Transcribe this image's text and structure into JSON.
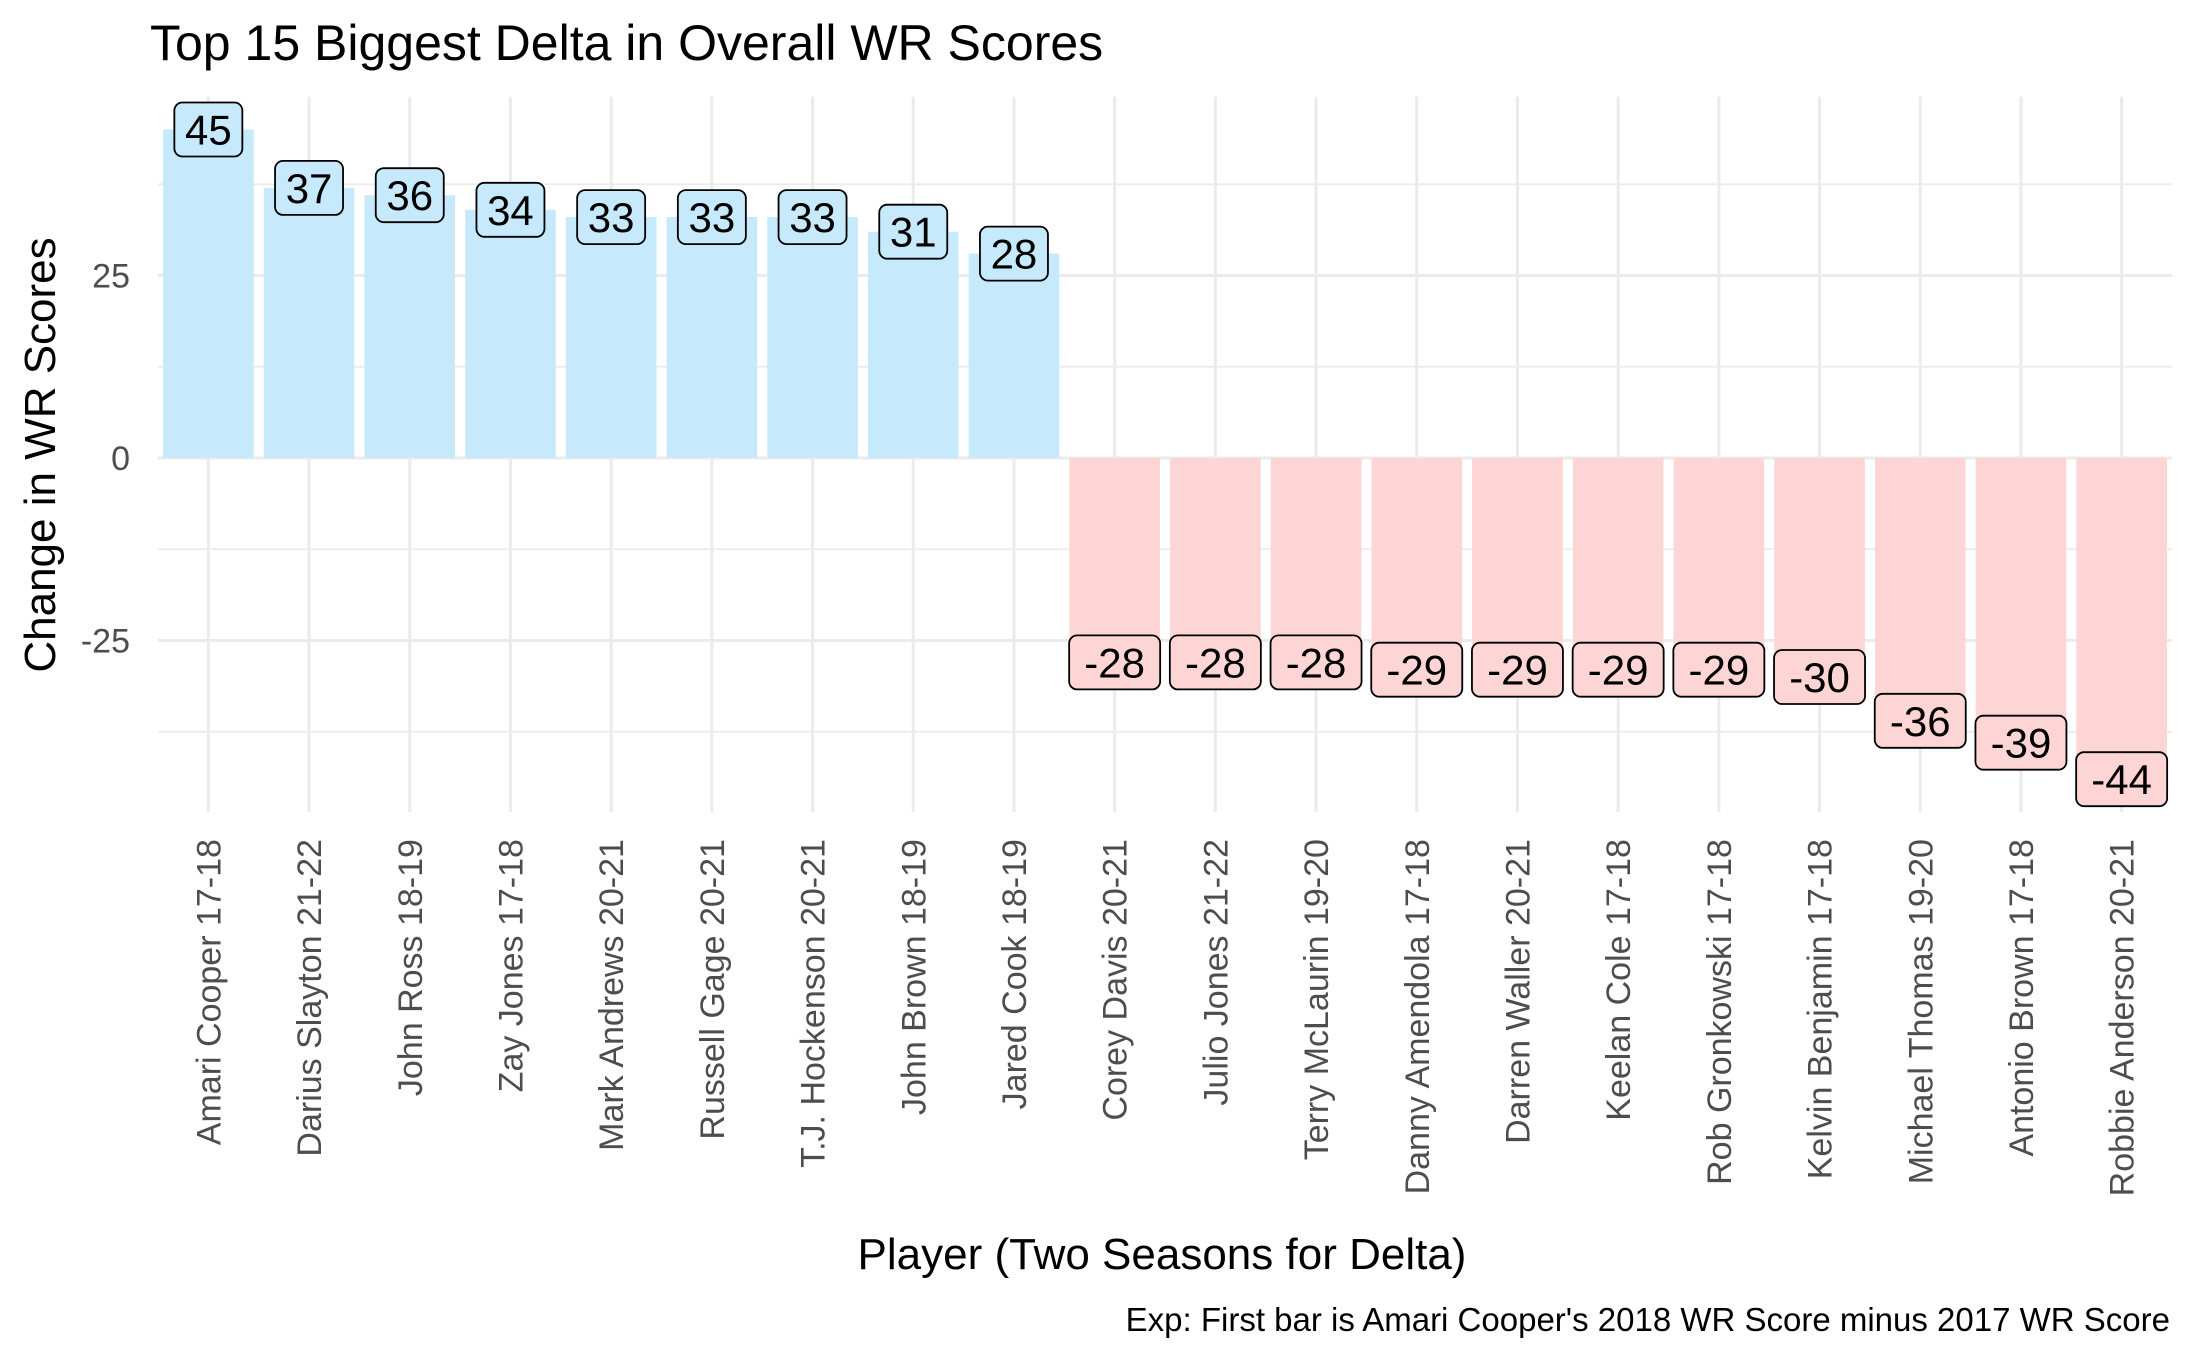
{
  "chart_data": {
    "type": "bar",
    "title": "Top 15 Biggest Delta in Overall WR Scores",
    "xlabel": "Player (Two Seasons for Delta)",
    "ylabel": "Change in WR Scores",
    "caption": "Exp: First bar is Amari Cooper's 2018 WR Score minus 2017 WR Score",
    "categories": [
      "Amari Cooper 17-18",
      "Darius Slayton 21-22",
      "John Ross 18-19",
      "Zay Jones 17-18",
      "Mark Andrews 20-21",
      "Russell Gage 20-21",
      "T.J. Hockenson 20-21",
      "John Brown 18-19",
      "Jared Cook 18-19",
      "Corey Davis 20-21",
      "Julio Jones 21-22",
      "Terry McLaurin 19-20",
      "Danny Amendola 17-18",
      "Darren Waller 20-21",
      "Keelan Cole 17-18",
      "Rob Gronkowski 17-18",
      "Kelvin Benjamin 17-18",
      "Michael Thomas 19-20",
      "Antonio Brown 17-18",
      "Robbie Anderson 20-21"
    ],
    "values": [
      45,
      37,
      36,
      34,
      33,
      33,
      33,
      31,
      28,
      -28,
      -28,
      -28,
      -29,
      -29,
      -29,
      -29,
      -30,
      -36,
      -39,
      -44
    ],
    "labels": [
      "45",
      "37",
      "36",
      "34",
      "33",
      "33",
      "33",
      "31",
      "28",
      "-28",
      "-28",
      "-28",
      "-29",
      "-29",
      "-29",
      "-29",
      "-30",
      "-36",
      "-39",
      "-44"
    ],
    "yticks": [
      -25,
      0,
      25
    ],
    "ytick_labels": [
      "-25",
      "0",
      "25"
    ],
    "ylim": [
      -48.5,
      49.5
    ],
    "grid": true,
    "legend": "none",
    "colors": {
      "positive_fill": "#c6eafb",
      "negative_fill": "#fdd5d5",
      "positive_label_fill": "#c6eafb",
      "negative_label_fill": "#fdd5d5"
    }
  }
}
